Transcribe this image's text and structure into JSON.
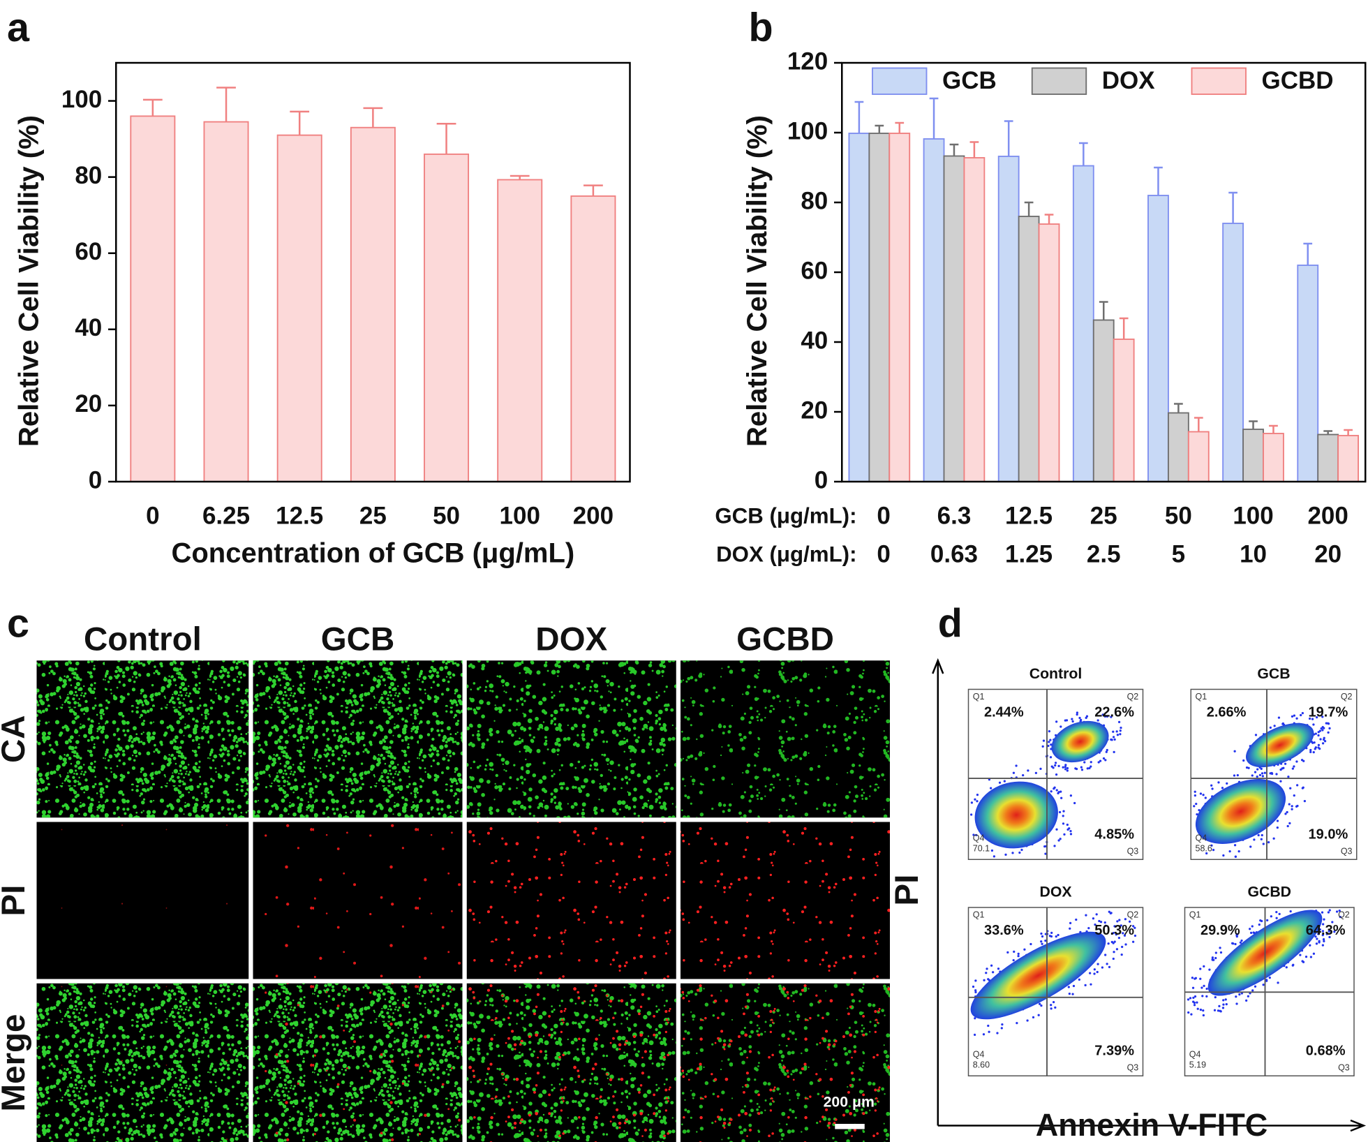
{
  "chart_data": [
    {
      "type": "bar",
      "panel_label": "a",
      "x_label": "Concentration of GCB (μg/mL)",
      "y_label": "Relative Cell Viability (%)",
      "categories": [
        "0",
        "6.25",
        "12.5",
        "25",
        "50",
        "100",
        "200"
      ],
      "values": [
        96,
        94.5,
        91,
        93,
        86,
        79.3,
        75
      ],
      "errors": [
        4.3,
        9,
        6.2,
        5.1,
        8,
        1,
        2.8
      ],
      "color": "#fcd9d9",
      "edge_color": "#f08080",
      "ylim": [
        0,
        110
      ],
      "yticks": [
        0,
        20,
        40,
        60,
        80,
        100
      ]
    },
    {
      "type": "bar",
      "panel_label": "b",
      "y_label": "Relative Cell Viability (%)",
      "category_rows": [
        {
          "name": "GCB (μg/mL):",
          "labels": [
            "0",
            "6.3",
            "12.5",
            "25",
            "50",
            "100",
            "200"
          ]
        },
        {
          "name": "DOX (μg/mL):",
          "labels": [
            "0",
            "0.63",
            "1.25",
            "2.5",
            "5",
            "10",
            "20"
          ]
        }
      ],
      "series": [
        {
          "name": "GCB",
          "color": "#c8d9f6",
          "edge_color": "#7f8ff0",
          "values": [
            99.8,
            98.2,
            93.2,
            90.5,
            82,
            74,
            62
          ],
          "errors": [
            9,
            11.6,
            10.1,
            6.5,
            8,
            8.8,
            6.2
          ]
        },
        {
          "name": "DOX",
          "color": "#d0d0d0",
          "edge_color": "#6f6f6f",
          "values": [
            99.8,
            93.3,
            76,
            46.3,
            19.7,
            15,
            13.5
          ],
          "errors": [
            2.2,
            3.3,
            4,
            5.2,
            2.6,
            2.3,
            1
          ]
        },
        {
          "name": "GCBD",
          "color": "#fcd9d9",
          "edge_color": "#f08080",
          "values": [
            99.8,
            92.8,
            73.8,
            40.8,
            14.3,
            13.8,
            13.2
          ],
          "errors": [
            3,
            4.5,
            2.7,
            6,
            4,
            2.2,
            1.6
          ]
        }
      ],
      "ylim": [
        0,
        120
      ],
      "yticks": [
        0,
        20,
        40,
        60,
        80,
        100,
        120
      ]
    }
  ],
  "micrographs": {
    "panel_label": "c",
    "columns": [
      "Control",
      "GCB",
      "DOX",
      "GCBD"
    ],
    "rows": [
      "CA",
      "PI",
      "Merge"
    ],
    "scale_bar": "200 μm"
  },
  "flow_cytometry": {
    "panel_label": "d",
    "x_label": "Annexin V-FITC",
    "y_label": "PI",
    "quadrant_names": [
      "Q1",
      "Q2",
      "Q3",
      "Q4"
    ],
    "plots": [
      {
        "title": "Control",
        "Q1": "2.44%",
        "Q2": "22.6%",
        "Q3": "4.85%",
        "Q4": "70.1"
      },
      {
        "title": "GCB",
        "Q1": "2.66%",
        "Q2": "19.7%",
        "Q3": "19.0%",
        "Q4": "58.6"
      },
      {
        "title": "DOX",
        "Q1": "33.6%",
        "Q2": "50.3%",
        "Q3": "7.39%",
        "Q4": "8.60"
      },
      {
        "title": "GCBD",
        "Q1": "29.9%",
        "Q2": "64.3%",
        "Q3": "0.68%",
        "Q4": "5.19"
      }
    ]
  }
}
